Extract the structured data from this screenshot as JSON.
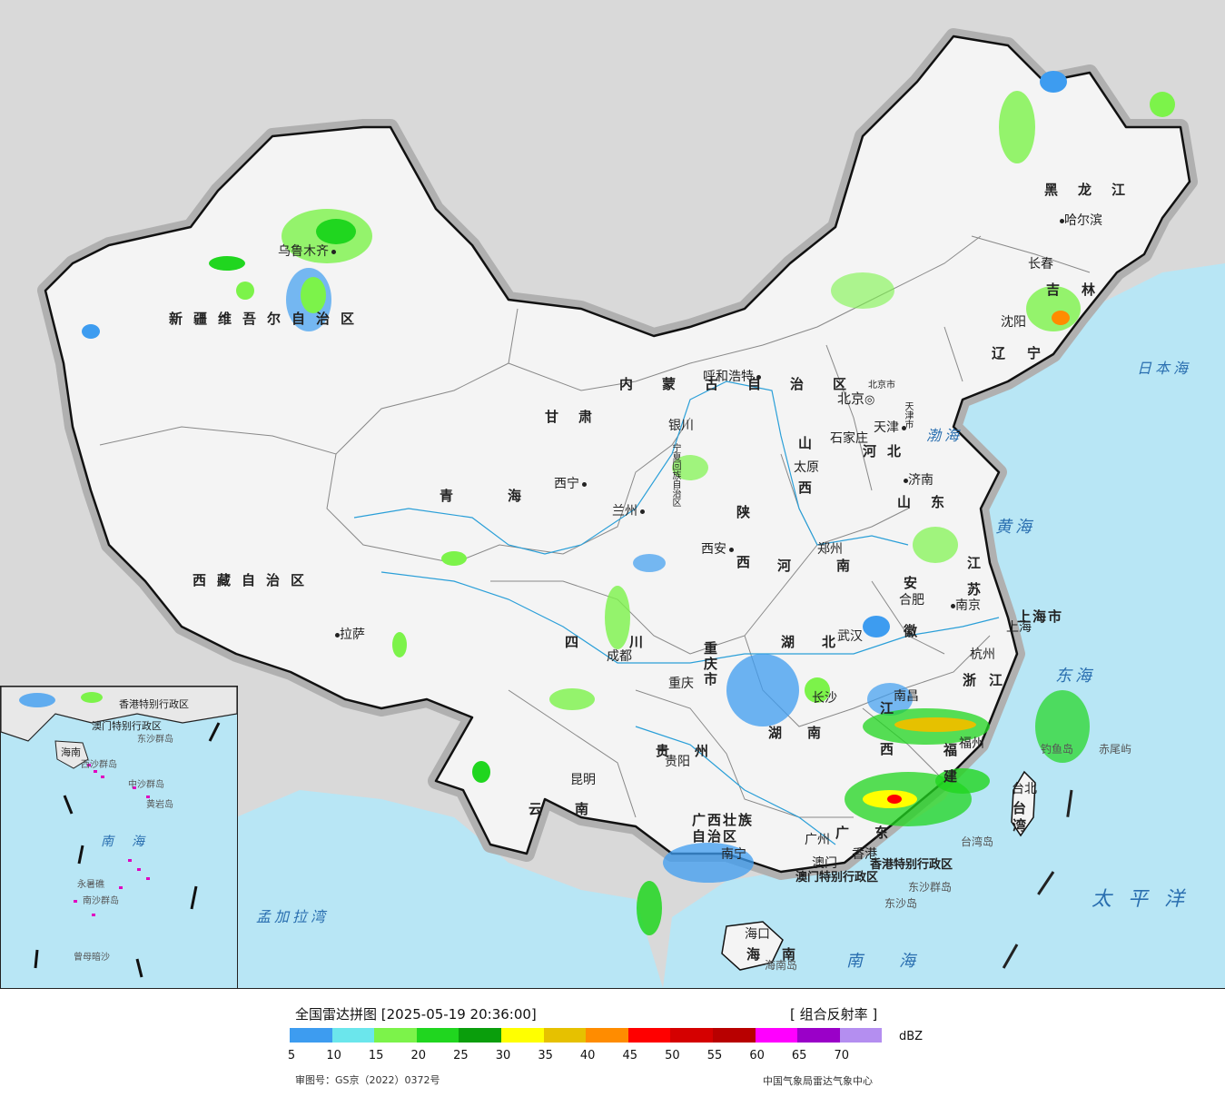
{
  "legend": {
    "title": "全国雷达拼图 [2025-05-19 20:36:00]",
    "product": "[ 组合反射率 ]",
    "unit": "dBZ",
    "ticks": [
      "5",
      "10",
      "15",
      "20",
      "25",
      "30",
      "35",
      "40",
      "45",
      "50",
      "55",
      "60",
      "65",
      "70"
    ],
    "colors": [
      "#3d9cf0",
      "#6be6ec",
      "#7cf34a",
      "#20d61f",
      "#0a9e0c",
      "#ffff00",
      "#e6c100",
      "#ff8c00",
      "#ff0000",
      "#d50000",
      "#b80000",
      "#ff00ff",
      "#9a00c8",
      "#b48ef0"
    ],
    "approval": "审图号：GS京（2022）0372号",
    "source": "中国气象局雷达气象中心"
  },
  "provinces": [
    {
      "name": "新疆维吾尔自治区"
    },
    {
      "name": "西藏自治区"
    },
    {
      "name": "青海"
    },
    {
      "name": "甘肃"
    },
    {
      "name": "内蒙古自治区"
    },
    {
      "name": "黑龙江"
    },
    {
      "name": "吉林"
    },
    {
      "name": "辽宁"
    },
    {
      "name": "河北"
    },
    {
      "name": "山西"
    },
    {
      "name": "山东"
    },
    {
      "name": "陕西"
    },
    {
      "name": "河南"
    },
    {
      "name": "江苏"
    },
    {
      "name": "安徽"
    },
    {
      "name": "四川"
    },
    {
      "name": "重庆市"
    },
    {
      "name": "湖北"
    },
    {
      "name": "浙江"
    },
    {
      "name": "湖南"
    },
    {
      "name": "江西"
    },
    {
      "name": "福建"
    },
    {
      "name": "贵州"
    },
    {
      "name": "云南"
    },
    {
      "name": "广西壮族自治区"
    },
    {
      "name": "广东"
    },
    {
      "name": "台湾"
    },
    {
      "name": "海南"
    },
    {
      "name": "上海市"
    },
    {
      "name": "宁夏回族自治区"
    }
  ],
  "cities": [
    {
      "name": "乌鲁木齐"
    },
    {
      "name": "拉萨"
    },
    {
      "name": "西宁"
    },
    {
      "name": "兰州"
    },
    {
      "name": "银川"
    },
    {
      "name": "呼和浩特"
    },
    {
      "name": "北京"
    },
    {
      "name": "北京市"
    },
    {
      "name": "天津"
    },
    {
      "name": "天津市"
    },
    {
      "name": "石家庄"
    },
    {
      "name": "太原"
    },
    {
      "name": "济南"
    },
    {
      "name": "郑州"
    },
    {
      "name": "西安"
    },
    {
      "name": "成都"
    },
    {
      "name": "重庆"
    },
    {
      "name": "武汉"
    },
    {
      "name": "合肥"
    },
    {
      "name": "南京"
    },
    {
      "name": "上海"
    },
    {
      "name": "杭州"
    },
    {
      "name": "长沙"
    },
    {
      "name": "南昌"
    },
    {
      "name": "福州"
    },
    {
      "name": "贵阳"
    },
    {
      "name": "昆明"
    },
    {
      "name": "南宁"
    },
    {
      "name": "广州"
    },
    {
      "name": "香港"
    },
    {
      "name": "澳门"
    },
    {
      "name": "海口"
    },
    {
      "name": "台北"
    },
    {
      "name": "哈尔滨"
    },
    {
      "name": "长春"
    },
    {
      "name": "沈阳"
    },
    {
      "name": "香港特别行政区"
    },
    {
      "name": "澳门特别行政区"
    }
  ],
  "places": [
    {
      "name": "日本海"
    },
    {
      "name": "渤海"
    },
    {
      "name": "黄海"
    },
    {
      "name": "东海"
    },
    {
      "name": "太平洋"
    },
    {
      "name": "南海"
    },
    {
      "name": "孟加拉湾"
    },
    {
      "name": "钓鱼岛"
    },
    {
      "name": "赤尾屿"
    },
    {
      "name": "台湾岛"
    },
    {
      "name": "东沙群岛"
    },
    {
      "name": "东沙岛"
    },
    {
      "name": "海南岛"
    }
  ],
  "inset": {
    "labels": [
      "香港特别行政区",
      "澳门特别行政区",
      "东沙群岛",
      "中沙群岛",
      "黄岩岛",
      "西沙群岛",
      "南沙群岛",
      "永暑礁",
      "曾母暗沙",
      "南海",
      "海南"
    ]
  },
  "icons": {
    "capital": "capital-star-icon",
    "city": "city-dot-icon"
  }
}
